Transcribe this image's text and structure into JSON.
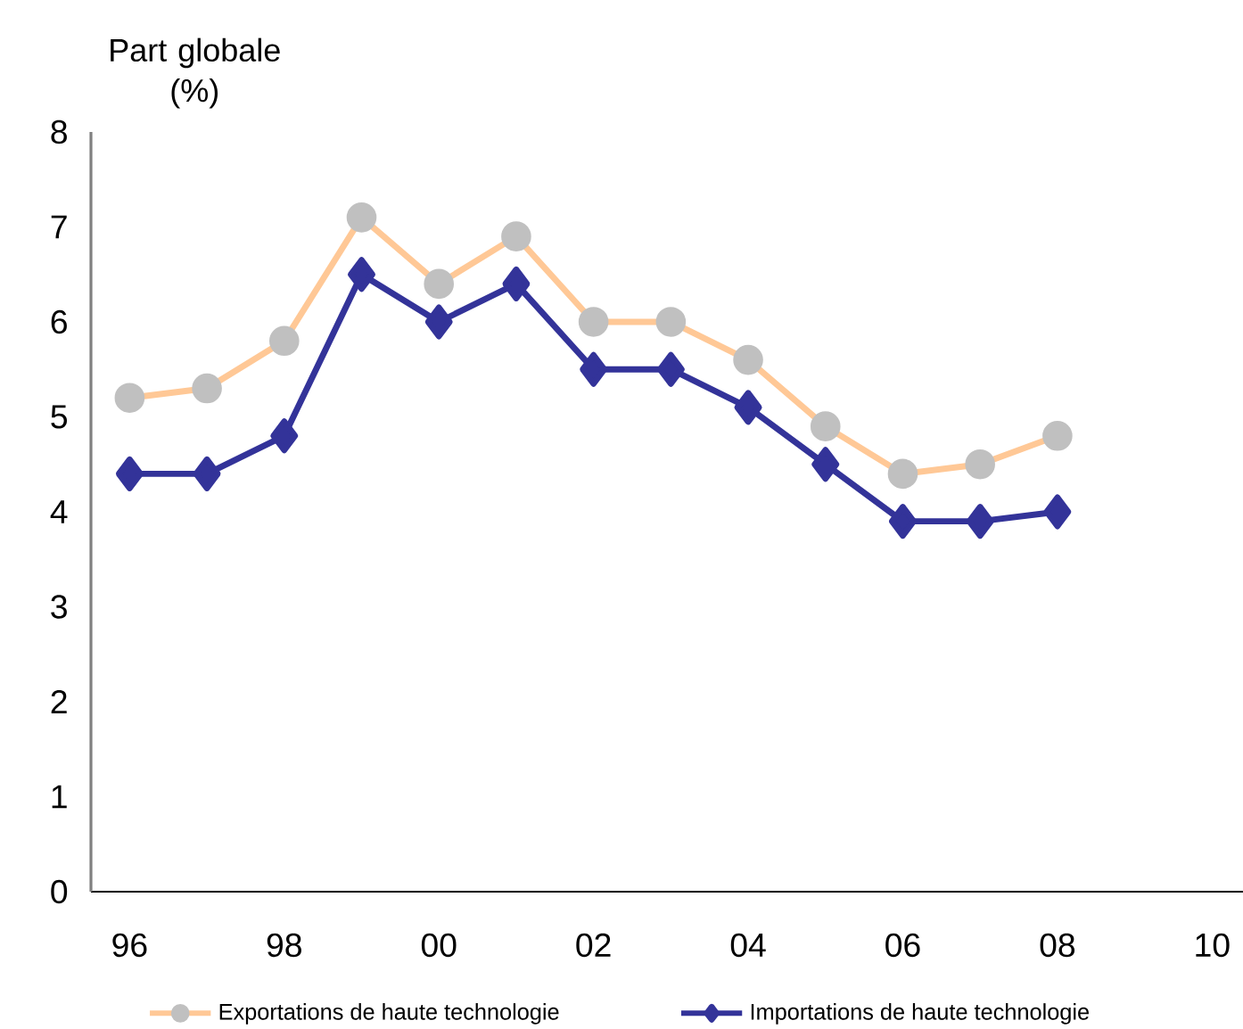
{
  "chart_data": {
    "type": "line",
    "ylabel": "Part globale (%)",
    "x": [
      1996,
      1997,
      1998,
      1999,
      2000,
      2001,
      2002,
      2003,
      2004,
      2005,
      2006,
      2007,
      2008
    ],
    "series": [
      {
        "name": "Exportations de haute technologie",
        "color": "#ffc896",
        "marker": "circle",
        "colors": [
          "#c0c0c0",
          "#c0c0c0",
          "#c0c0c0",
          "#c0c0c0",
          "#c0c0c0",
          "#c0c0c0",
          "#c0c0c0",
          "#c0c0c0",
          "#c0c0c0",
          "#c0c0c0",
          "#c0c0c0",
          "#c0c0c0",
          "#c0c0c0"
        ],
        "values": [
          5.2,
          5.3,
          5.8,
          7.1,
          6.4,
          6.9,
          6.0,
          6.0,
          5.6,
          4.9,
          4.4,
          4.5,
          4.8
        ]
      },
      {
        "name": "Importations de haute technologie",
        "color": "#333399",
        "marker": "diamond",
        "values": [
          4.4,
          4.4,
          4.8,
          6.5,
          6.0,
          6.4,
          5.5,
          5.5,
          5.1,
          4.5,
          3.9,
          3.9,
          4.0
        ]
      }
    ],
    "xlim": [
      1995.5,
      2010.4
    ],
    "ylim": [
      0,
      8
    ],
    "xticks": [
      {
        "value": 1996,
        "label": "96"
      },
      {
        "value": 1998,
        "label": "98"
      },
      {
        "value": 2000,
        "label": "00"
      },
      {
        "value": 2002,
        "label": "02"
      },
      {
        "value": 2004,
        "label": "04"
      },
      {
        "value": 2006,
        "label": "06"
      },
      {
        "value": 2008,
        "label": "08"
      },
      {
        "value": 2010,
        "label": "10"
      }
    ],
    "yticks": [
      0,
      1,
      2,
      3,
      4,
      5,
      6,
      7,
      8
    ],
    "legend": "bottom",
    "line_style": "solid"
  }
}
